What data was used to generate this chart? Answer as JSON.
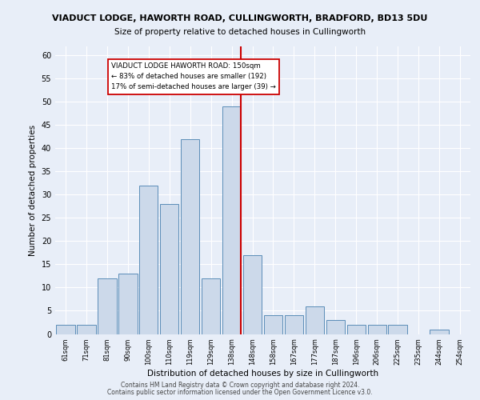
{
  "title_line1": "VIADUCT LODGE, HAWORTH ROAD, CULLINGWORTH, BRADFORD, BD13 5DU",
  "title_line2": "Size of property relative to detached houses in Cullingworth",
  "xlabel": "Distribution of detached houses by size in Cullingworth",
  "ylabel": "Number of detached properties",
  "categories": [
    "61sqm",
    "71sqm",
    "81sqm",
    "90sqm",
    "100sqm",
    "110sqm",
    "119sqm",
    "129sqm",
    "138sqm",
    "148sqm",
    "158sqm",
    "167sqm",
    "177sqm",
    "187sqm",
    "196sqm",
    "206sqm",
    "225sqm",
    "235sqm",
    "244sqm",
    "254sqm"
  ],
  "values": [
    2,
    2,
    12,
    13,
    32,
    28,
    42,
    12,
    49,
    17,
    4,
    4,
    6,
    3,
    2,
    2,
    2,
    0,
    1,
    0
  ],
  "bar_color": "#ccd9ea",
  "bar_edge_color": "#5b8db8",
  "vline_color": "#cc0000",
  "annotation_box_color": "#ffffff",
  "annotation_box_edge": "#cc0000",
  "annotation_text": "VIADUCT LODGE HAWORTH ROAD: 150sqm\n← 83% of detached houses are smaller (192)\n17% of semi-detached houses are larger (39) →",
  "ylim": [
    0,
    62
  ],
  "yticks": [
    0,
    5,
    10,
    15,
    20,
    25,
    30,
    35,
    40,
    45,
    50,
    55,
    60
  ],
  "background_color": "#e8eef8",
  "footer1": "Contains HM Land Registry data © Crown copyright and database right 2024.",
  "footer2": "Contains public sector information licensed under the Open Government Licence v3.0."
}
